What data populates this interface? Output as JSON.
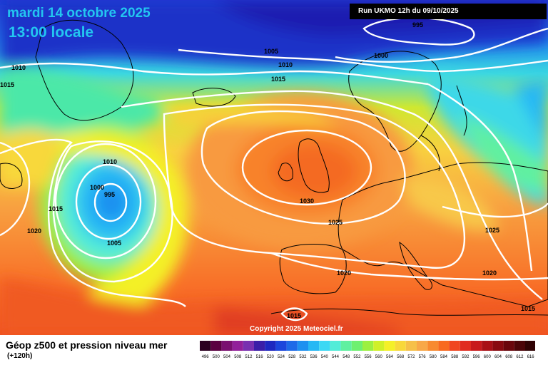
{
  "title": {
    "date": "mardi 14 octobre 2025",
    "time": "13:00 locale"
  },
  "run_info": "Run UKMO 12h du 09/10/2025",
  "copyright": "Copyright 2025 Meteociel.fr",
  "legend": {
    "title": "Géop z500 et pression niveau mer",
    "subtitle": "(+120h)",
    "ticks": [
      "496",
      "500",
      "504",
      "508",
      "512",
      "516",
      "520",
      "524",
      "528",
      "532",
      "536",
      "540",
      "544",
      "548",
      "552",
      "556",
      "560",
      "564",
      "568",
      "572",
      "576",
      "580",
      "584",
      "588",
      "592",
      "596",
      "600",
      "604",
      "608",
      "612",
      "616"
    ],
    "colors": [
      "#2b0020",
      "#5a0040",
      "#7a1070",
      "#92209a",
      "#7830b0",
      "#3a1ea8",
      "#1e28c0",
      "#1c46dc",
      "#1e6ae8",
      "#1e90f0",
      "#26b8f4",
      "#3cd8f4",
      "#52ecd8",
      "#60f0a0",
      "#6ef070",
      "#9cf040",
      "#cff028",
      "#f4f028",
      "#f8d83a",
      "#f6c048",
      "#f8a848",
      "#f88a30",
      "#f86a20",
      "#f04620",
      "#e02c20",
      "#c81a1c",
      "#a81016",
      "#880a10",
      "#6a060c",
      "#4c0408",
      "#300204"
    ]
  },
  "isobars": [
    {
      "value": "995",
      "color": "white"
    },
    {
      "value": "1000",
      "color": "white"
    },
    {
      "value": "1005",
      "color": "white"
    },
    {
      "value": "1010",
      "color": "white"
    },
    {
      "value": "1015",
      "color": "white"
    },
    {
      "value": "1020",
      "color": "white"
    },
    {
      "value": "1025",
      "color": "white"
    },
    {
      "value": "1030",
      "color": "white"
    }
  ],
  "labels": [
    "995",
    "1000",
    "1005",
    "1010",
    "1015",
    "1020",
    "1025",
    "1030"
  ]
}
